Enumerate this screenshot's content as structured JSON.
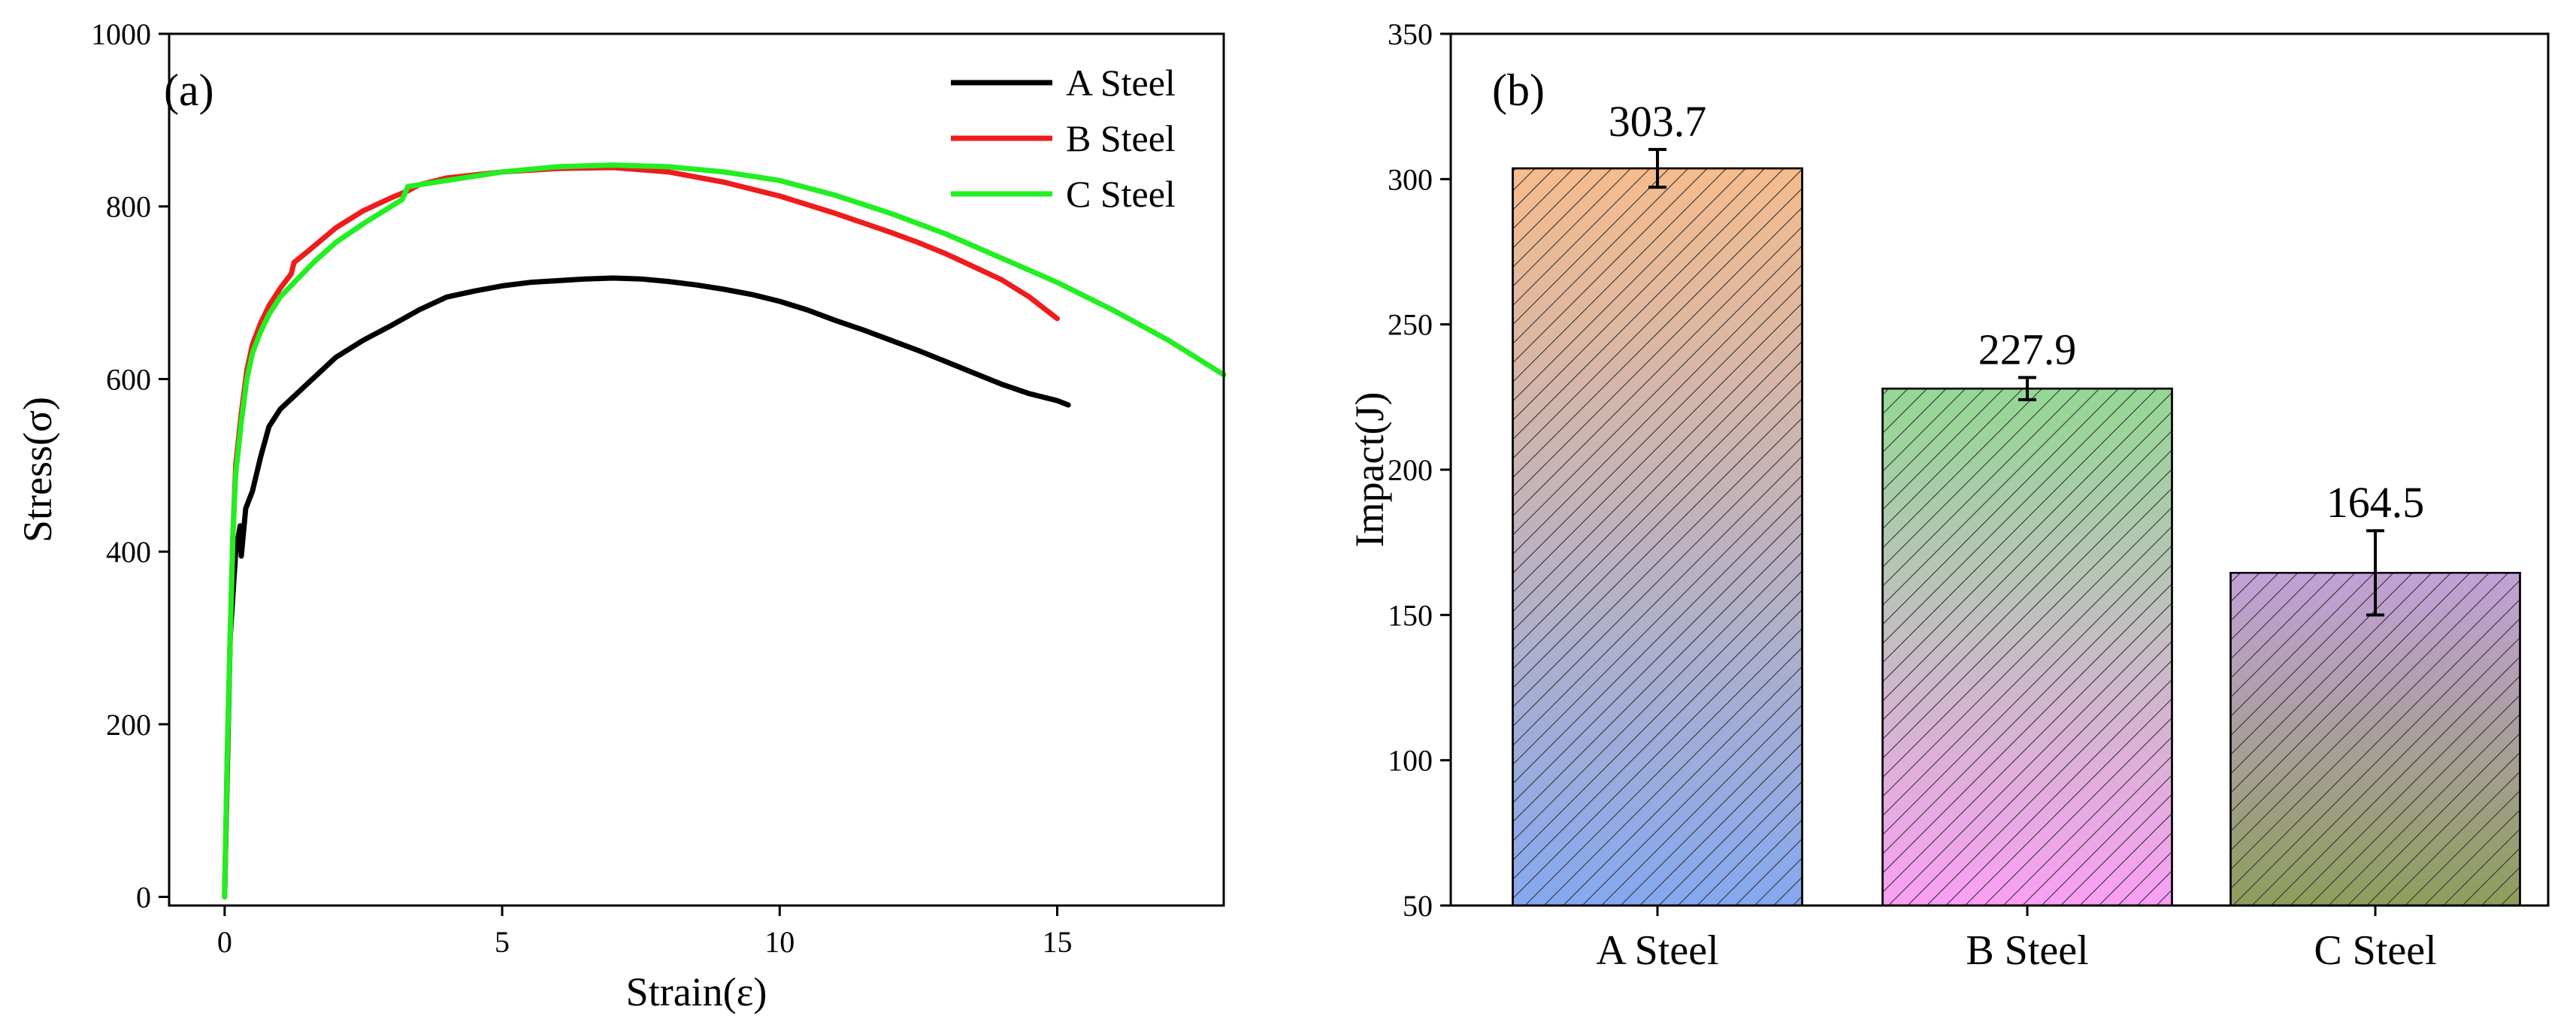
{
  "chart_data": [
    {
      "type": "line",
      "panel_label": "(a)",
      "xlabel": "Strain(ε)",
      "ylabel": "Stress(σ)",
      "xlim": [
        -1,
        18
      ],
      "ylim": [
        -10,
        1000
      ],
      "x_ticks": [
        0,
        5,
        10,
        15
      ],
      "y_ticks": [
        0,
        200,
        400,
        600,
        800,
        1000
      ],
      "legend_position": "top-right",
      "series": [
        {
          "name": "A Steel",
          "color": "#000000",
          "points": [
            [
              0,
              0
            ],
            [
              0.05,
              150
            ],
            [
              0.1,
              300
            ],
            [
              0.2,
              400
            ],
            [
              0.28,
              430
            ],
            [
              0.3,
              395
            ],
            [
              0.38,
              450
            ],
            [
              0.5,
              470
            ],
            [
              0.65,
              510
            ],
            [
              0.8,
              545
            ],
            [
              1.0,
              565
            ],
            [
              1.5,
              595
            ],
            [
              2.0,
              625
            ],
            [
              2.5,
              645
            ],
            [
              3.0,
              662
            ],
            [
              3.5,
              680
            ],
            [
              4.0,
              695
            ],
            [
              4.5,
              702
            ],
            [
              5.0,
              708
            ],
            [
              5.5,
              712
            ],
            [
              6.0,
              714
            ],
            [
              6.5,
              716
            ],
            [
              7.0,
              717
            ],
            [
              7.5,
              716
            ],
            [
              8.0,
              713
            ],
            [
              8.5,
              709
            ],
            [
              9.0,
              704
            ],
            [
              9.5,
              698
            ],
            [
              10.0,
              690
            ],
            [
              10.5,
              680
            ],
            [
              11.0,
              668
            ],
            [
              11.5,
              657
            ],
            [
              12.0,
              645
            ],
            [
              12.5,
              633
            ],
            [
              13.0,
              620
            ],
            [
              13.5,
              607
            ],
            [
              14.0,
              594
            ],
            [
              14.5,
              583
            ],
            [
              15.0,
              575
            ],
            [
              15.2,
              570
            ]
          ]
        },
        {
          "name": "B Steel",
          "color": "#ee1c1c",
          "points": [
            [
              0,
              0
            ],
            [
              0.05,
              170
            ],
            [
              0.1,
              300
            ],
            [
              0.15,
              420
            ],
            [
              0.2,
              500
            ],
            [
              0.3,
              560
            ],
            [
              0.4,
              610
            ],
            [
              0.5,
              640
            ],
            [
              0.65,
              665
            ],
            [
              0.8,
              685
            ],
            [
              1.0,
              705
            ],
            [
              1.2,
              722
            ],
            [
              1.25,
              735
            ],
            [
              1.5,
              748
            ],
            [
              2.0,
              775
            ],
            [
              2.5,
              795
            ],
            [
              3.0,
              810
            ],
            [
              3.3,
              818
            ],
            [
              3.5,
              825
            ],
            [
              4.0,
              833
            ],
            [
              5.0,
              840
            ],
            [
              6.0,
              844
            ],
            [
              7.0,
              845
            ],
            [
              8.0,
              840
            ],
            [
              9.0,
              828
            ],
            [
              10.0,
              812
            ],
            [
              11.0,
              792
            ],
            [
              12.0,
              770
            ],
            [
              12.5,
              758
            ],
            [
              13.0,
              745
            ],
            [
              13.5,
              730
            ],
            [
              14.0,
              715
            ],
            [
              14.5,
              695
            ],
            [
              15.0,
              670
            ]
          ]
        },
        {
          "name": "C Steel",
          "color": "#22ee22",
          "points": [
            [
              0,
              0
            ],
            [
              0.05,
              170
            ],
            [
              0.1,
              300
            ],
            [
              0.15,
              420
            ],
            [
              0.2,
              490
            ],
            [
              0.3,
              550
            ],
            [
              0.4,
              600
            ],
            [
              0.5,
              630
            ],
            [
              0.65,
              655
            ],
            [
              0.8,
              675
            ],
            [
              1.0,
              695
            ],
            [
              1.3,
              715
            ],
            [
              1.6,
              735
            ],
            [
              2.0,
              758
            ],
            [
              2.5,
              780
            ],
            [
              3.0,
              800
            ],
            [
              3.2,
              808
            ],
            [
              3.3,
              823
            ],
            [
              4.0,
              830
            ],
            [
              5.0,
              840
            ],
            [
              6.0,
              846
            ],
            [
              7.0,
              848
            ],
            [
              8.0,
              846
            ],
            [
              9.0,
              840
            ],
            [
              10.0,
              830
            ],
            [
              11.0,
              813
            ],
            [
              12.0,
              792
            ],
            [
              13.0,
              768
            ],
            [
              14.0,
              740
            ],
            [
              15.0,
              712
            ],
            [
              16.0,
              680
            ],
            [
              17.0,
              645
            ],
            [
              18.0,
              605
            ]
          ]
        }
      ]
    },
    {
      "type": "bar",
      "panel_label": "(b)",
      "xlabel": "",
      "ylabel": "Impact(J)",
      "ylim": [
        50,
        350
      ],
      "y_ticks": [
        50,
        100,
        150,
        200,
        250,
        300,
        350
      ],
      "categories": [
        "A Steel",
        "B Steel",
        "C Steel"
      ],
      "values": [
        303.7,
        227.9,
        164.5
      ],
      "value_labels": [
        "303.7",
        "227.9",
        "164.5"
      ],
      "errors": [
        6.5,
        3.8,
        14.5
      ],
      "bar_gradients": [
        [
          "#f6bc8c",
          "#86a8f0"
        ],
        [
          "#94d894",
          "#f9a0f4"
        ],
        [
          "#c3a0d9",
          "#8e9e5c"
        ]
      ],
      "hatch": "diagonal"
    }
  ]
}
